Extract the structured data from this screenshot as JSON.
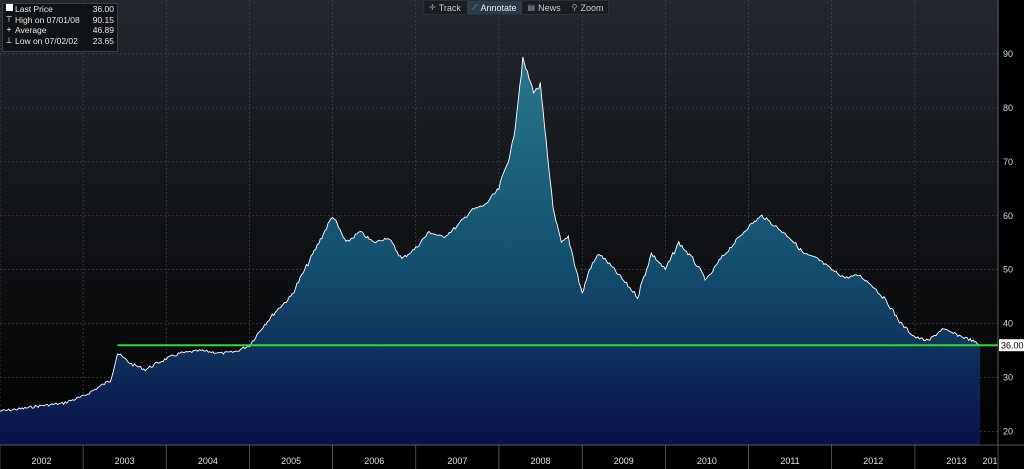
{
  "toolbar": {
    "buttons": [
      {
        "label": "Track",
        "icon": "crosshair-icon",
        "glyph": "✛",
        "active": false
      },
      {
        "label": "Annotate",
        "icon": "pencil-icon",
        "glyph": "⟋",
        "active": true
      },
      {
        "label": "News",
        "icon": "news-icon",
        "glyph": "▤",
        "active": false
      },
      {
        "label": "Zoom",
        "icon": "magnifier-icon",
        "glyph": "⚲",
        "active": false
      }
    ]
  },
  "legend": {
    "items": [
      {
        "label": "Last Price",
        "value": "36.00",
        "marker": "square"
      },
      {
        "label": "High on 07/01/08",
        "value": "90.15",
        "marker": "high"
      },
      {
        "label": "Average",
        "value": "46.89",
        "marker": "avg"
      },
      {
        "label": "Low on 07/02/02",
        "value": "23.65",
        "marker": "low"
      }
    ]
  },
  "chart_data": {
    "type": "area",
    "x_start": "2002-01-01",
    "x_end": "2014-01-01",
    "ylim": [
      17.5,
      100
    ],
    "y_ticks": [
      20,
      30,
      40,
      50,
      60,
      70,
      80,
      90
    ],
    "x_tick_labels": [
      "2002",
      "2003",
      "2004",
      "2005",
      "2006",
      "2007",
      "2008",
      "2009",
      "2010",
      "2011",
      "2012",
      "2013",
      "201"
    ],
    "grid": true,
    "last_price_label": "36.00",
    "reference_line": {
      "value": 36.0,
      "from_date": "2003-06-01",
      "color": "#2bdc2b"
    },
    "colors": {
      "background": "#000000",
      "line": "#ffffff",
      "area_top": "#2a7b8e",
      "area_bottom": "#0a1048",
      "grid": "#4a4f57"
    },
    "series": [
      {
        "x": [
          "2002-01-01",
          "2002-04-01",
          "2002-07-01",
          "2002-10-01",
          "2003-01-01",
          "2003-03-01",
          "2003-05-01",
          "2003-06-01",
          "2003-08-01",
          "2003-10-01",
          "2004-01-01",
          "2004-03-01",
          "2004-06-01",
          "2004-09-01",
          "2004-11-01",
          "2005-01-01",
          "2005-03-01",
          "2005-05-01",
          "2005-07-01",
          "2005-09-01",
          "2005-11-01",
          "2006-01-01",
          "2006-03-01",
          "2006-05-01",
          "2006-07-01",
          "2006-09-01",
          "2006-11-01",
          "2007-01-01",
          "2007-03-01",
          "2007-05-01",
          "2007-07-01",
          "2007-09-01",
          "2007-11-01",
          "2008-01-01",
          "2008-03-01",
          "2008-04-15",
          "2008-06-01",
          "2008-07-01",
          "2008-08-01",
          "2008-09-01",
          "2008-10-01",
          "2008-11-01",
          "2009-01-01",
          "2009-02-01",
          "2009-03-15",
          "2009-05-01",
          "2009-07-01",
          "2009-09-01",
          "2009-11-01",
          "2010-01-01",
          "2010-03-01",
          "2010-05-01",
          "2010-07-01",
          "2010-09-01",
          "2010-11-01",
          "2011-01-01",
          "2011-03-01",
          "2011-05-01",
          "2011-07-01",
          "2011-09-01",
          "2011-11-01",
          "2012-01-01",
          "2012-03-01",
          "2012-05-01",
          "2012-07-01",
          "2012-09-01",
          "2012-11-01",
          "2013-01-01",
          "2013-03-01",
          "2013-05-01",
          "2013-07-01",
          "2013-09-01",
          "2013-10-15"
        ],
        "values": [
          23.8,
          24.2,
          24.8,
          25.2,
          26.5,
          28.0,
          29.5,
          34.5,
          32.5,
          31.5,
          33.5,
          34.5,
          35.0,
          34.5,
          34.8,
          36.0,
          39.5,
          42.5,
          45.0,
          50.0,
          55.0,
          60.0,
          55.0,
          57.0,
          55.0,
          56.0,
          52.0,
          54.0,
          57.0,
          56.0,
          58.0,
          61.0,
          62.0,
          65.0,
          73.0,
          89.0,
          83.0,
          84.0,
          71.0,
          60.0,
          55.0,
          56.0,
          45.5,
          50.0,
          53.0,
          51.0,
          48.0,
          45.0,
          53.0,
          50.0,
          55.0,
          52.0,
          48.0,
          52.0,
          55.0,
          58.0,
          60.0,
          58.0,
          56.0,
          53.0,
          52.0,
          50.0,
          48.5,
          49.0,
          47.0,
          44.0,
          40.0,
          37.5,
          36.8,
          39.0,
          38.0,
          37.0,
          36.0
        ]
      }
    ]
  }
}
